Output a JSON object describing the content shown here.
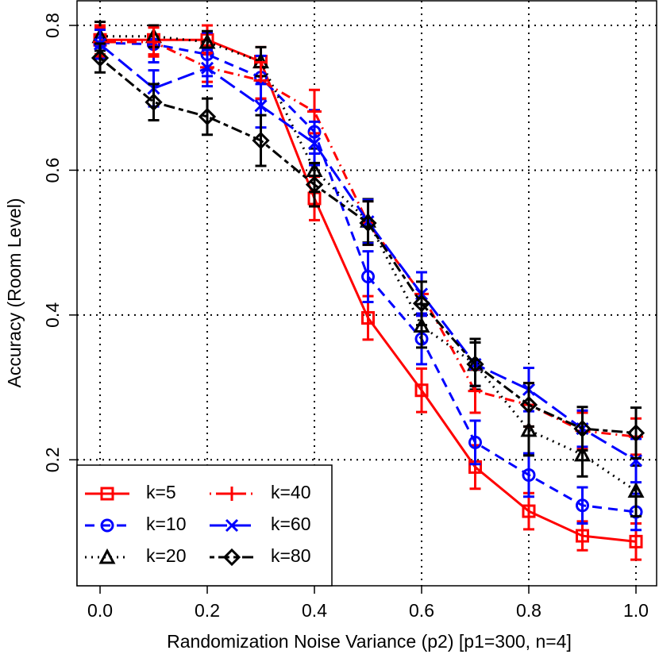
{
  "chart_data": {
    "type": "line",
    "x_label": "Randomization Noise Variance (p2) [p1=300, n=4]",
    "y_label": "Accuracy (Room Level)",
    "x": [
      0,
      0.1,
      0.2,
      0.3,
      0.4,
      0.5,
      0.6,
      0.7,
      0.8,
      0.9,
      1.0
    ],
    "xlim": [
      -0.043,
      1.04
    ],
    "ylim": [
      0.026,
      0.834
    ],
    "xticks": [
      {
        "value": 0,
        "label": "0.0"
      },
      0.2,
      0.4,
      0.6,
      0.8,
      {
        "value": 1,
        "label": "1.0"
      }
    ],
    "yticks": [
      0.2,
      0.4,
      0.6,
      0.8
    ],
    "grid": true,
    "legend": "bottom-left",
    "series": [
      {
        "name": "k=5",
        "color": "#ff0000",
        "marker": "square",
        "dash": "solid",
        "values": [
          0.78,
          0.78,
          0.78,
          0.75,
          0.561,
          0.396,
          0.296,
          0.19,
          0.129,
          0.095,
          0.087
        ],
        "errors": [
          0.02,
          0.02,
          0.02,
          0.02,
          0.03,
          0.03,
          0.03,
          0.03,
          0.025,
          0.02,
          0.025
        ]
      },
      {
        "name": "k=10",
        "color": "#0000ff",
        "marker": "circle",
        "dash": "dashed",
        "values": [
          0.776,
          0.774,
          0.76,
          0.728,
          0.653,
          0.453,
          0.367,
          0.224,
          0.179,
          0.137,
          0.128
        ],
        "errors": [
          0.02,
          0.025,
          0.03,
          0.03,
          0.03,
          0.035,
          0.035,
          0.03,
          0.03,
          0.025,
          0.025
        ]
      },
      {
        "name": "k=20",
        "color": "#000000",
        "marker": "triangle",
        "dash": "dotted",
        "values": [
          0.785,
          0.785,
          0.777,
          0.75,
          0.6,
          0.53,
          0.385,
          0.332,
          0.241,
          0.207,
          0.157
        ],
        "errors": [
          0.02,
          0.015,
          0.015,
          0.02,
          0.03,
          0.03,
          0.03,
          0.035,
          0.035,
          0.03,
          0.035
        ]
      },
      {
        "name": "k=40",
        "color": "#ff0000",
        "marker": "plus",
        "dash": "dotdash",
        "values": [
          0.777,
          0.777,
          0.742,
          0.724,
          0.681,
          0.527,
          0.429,
          0.295,
          0.276,
          0.24,
          0.232
        ],
        "errors": [
          0.02,
          0.02,
          0.02,
          0.025,
          0.03,
          0.03,
          0.03,
          0.03,
          0.03,
          0.025,
          0.025
        ]
      },
      {
        "name": "k=60",
        "color": "#0000ff",
        "marker": "cross",
        "dash": "longdash",
        "values": [
          0.774,
          0.713,
          0.741,
          0.689,
          0.637,
          0.529,
          0.429,
          0.332,
          0.297,
          0.243,
          0.199
        ],
        "errors": [
          0.02,
          0.025,
          0.025,
          0.03,
          0.03,
          0.03,
          0.03,
          0.03,
          0.03,
          0.025,
          0.03
        ]
      },
      {
        "name": "k=80",
        "color": "#000000",
        "marker": "diamond",
        "dash": "twodash",
        "values": [
          0.755,
          0.694,
          0.674,
          0.641,
          0.58,
          0.527,
          0.416,
          0.332,
          0.276,
          0.243,
          0.237
        ],
        "errors": [
          0.02,
          0.025,
          0.025,
          0.035,
          0.03,
          0.03,
          0.03,
          0.03,
          0.03,
          0.03,
          0.035
        ]
      }
    ]
  }
}
